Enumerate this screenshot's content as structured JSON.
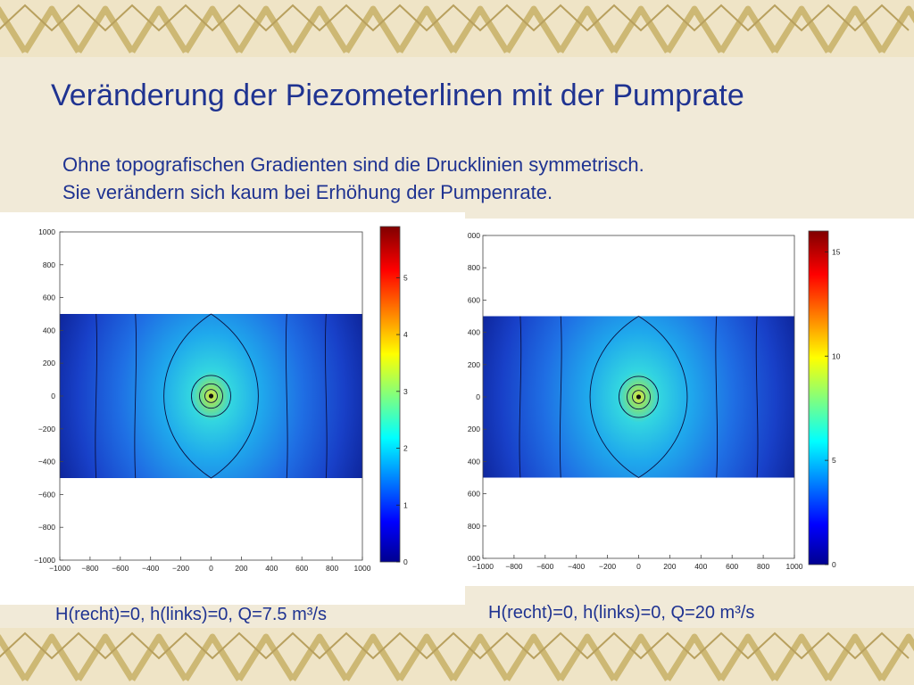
{
  "slide": {
    "title": "Veränderung der Piezometerlinen mit der Pumprate",
    "subtitle_lines": [
      "Ohne topografischen Gradienten sind die Drucklinien symmetrisch.",
      "Sie verändern sich kaum bei Erhöhung der Pumpenrate."
    ]
  },
  "colors": {
    "title_text": "#1f3391",
    "background": "#f1ead8",
    "border_gold": "#cdb874",
    "plot_blue_dark": "#0a1f9a",
    "plot_blue": "#1b64e8",
    "plot_cyan": "#30d9e6"
  },
  "figures": [
    {
      "caption": "H(recht)=0, h(links)=0, Q=7.5 m³/s",
      "chart_data": {
        "type": "heatmap",
        "xlim": [
          -1000,
          1000
        ],
        "ylim": [
          -1000,
          1000
        ],
        "x_ticks": [
          "−1000",
          "−800",
          "−600",
          "−400",
          "−200",
          "0",
          "200",
          "400",
          "600",
          "800",
          "1000"
        ],
        "y_ticks": [
          "1000",
          "800",
          "600",
          "400",
          "200",
          "0",
          "−200",
          "−400",
          "−600",
          "−800",
          "−1000"
        ],
        "colorbar_ticks": [
          "5",
          "4",
          "3",
          "2",
          "1",
          "0"
        ],
        "colorbar_max": 5.9,
        "domain_y_range": [
          -500,
          500
        ],
        "pumping_well": [
          0,
          0
        ]
      }
    },
    {
      "caption": "H(recht)=0, h(links)=0, Q=20 m³/s",
      "chart_data": {
        "type": "heatmap",
        "xlim": [
          -1000,
          1000
        ],
        "ylim": [
          -1000,
          1000
        ],
        "x_ticks": [
          "−1000",
          "−800",
          "−600",
          "−400",
          "−200",
          "0",
          "200",
          "400",
          "600",
          "800",
          "1000"
        ],
        "y_ticks": [
          "000",
          "800",
          "600",
          "400",
          "200",
          "0",
          "200",
          "400",
          "600",
          "800",
          "000"
        ],
        "colorbar_ticks": [
          "15",
          "10",
          "5",
          "0"
        ],
        "colorbar_max": 16,
        "domain_y_range": [
          -500,
          500
        ],
        "pumping_well": [
          0,
          0
        ]
      }
    }
  ]
}
